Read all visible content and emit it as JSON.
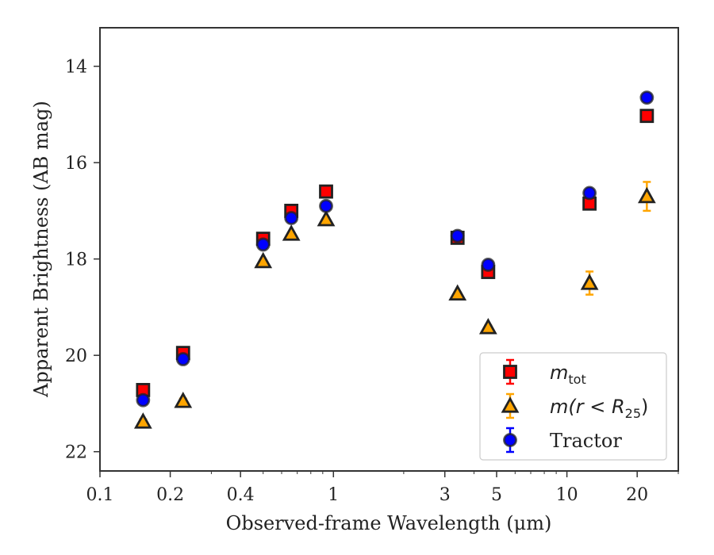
{
  "chart_data": {
    "type": "scatter",
    "xlabel": "Observed-frame Wavelength (μm)",
    "ylabel": "Apparent Brightness (AB mag)",
    "xscale": "log",
    "xlim": [
      0.1,
      30
    ],
    "ylim": [
      22.4,
      13.2
    ],
    "y_inverted": true,
    "xticks": [
      {
        "value": 0.1,
        "label": "0.1"
      },
      {
        "value": 0.2,
        "label": "0.2"
      },
      {
        "value": 0.4,
        "label": "0.4"
      },
      {
        "value": 1,
        "label": "1"
      },
      {
        "value": 3,
        "label": "3"
      },
      {
        "value": 5,
        "label": "5"
      },
      {
        "value": 10,
        "label": "10"
      },
      {
        "value": 20,
        "label": "20"
      }
    ],
    "yticks": [
      {
        "value": 14,
        "label": "14"
      },
      {
        "value": 16,
        "label": "16"
      },
      {
        "value": 18,
        "label": "18"
      },
      {
        "value": 20,
        "label": "20"
      },
      {
        "value": 22,
        "label": "22"
      }
    ],
    "legend_position": "lower-right",
    "series": [
      {
        "name": "m_tot",
        "legend_main": "m",
        "legend_sub": "tot",
        "legend_suffix": "",
        "marker": "square",
        "face": "#ff0000",
        "edge": "#222222",
        "errcolor": "#ff0000",
        "points": [
          {
            "x": 0.153,
            "y": 20.72,
            "err": 0.05
          },
          {
            "x": 0.227,
            "y": 19.95,
            "err": 0.04
          },
          {
            "x": 0.5,
            "y": 17.58,
            "err": 0.03
          },
          {
            "x": 0.66,
            "y": 17.0,
            "err": 0.03
          },
          {
            "x": 0.93,
            "y": 16.6,
            "err": 0.03
          },
          {
            "x": 3.4,
            "y": 17.56,
            "err": 0.03
          },
          {
            "x": 4.6,
            "y": 18.27,
            "err": 0.03
          },
          {
            "x": 12.5,
            "y": 16.85,
            "err": 0.04
          },
          {
            "x": 22.0,
            "y": 15.03,
            "err": 0.05
          }
        ]
      },
      {
        "name": "m(r<R25)",
        "legend_main": "m(r < R",
        "legend_sub": "25",
        "legend_suffix": ")",
        "marker": "triangle",
        "face": "#ffa500",
        "edge": "#222222",
        "errcolor": "#ffa500",
        "points": [
          {
            "x": 0.153,
            "y": 21.38,
            "err": 0.05
          },
          {
            "x": 0.227,
            "y": 20.95,
            "err": 0.05
          },
          {
            "x": 0.5,
            "y": 18.05,
            "err": 0.03
          },
          {
            "x": 0.66,
            "y": 17.48,
            "err": 0.03
          },
          {
            "x": 0.93,
            "y": 17.18,
            "err": 0.03
          },
          {
            "x": 3.4,
            "y": 18.72,
            "err": 0.03
          },
          {
            "x": 4.6,
            "y": 19.42,
            "err": 0.04
          },
          {
            "x": 12.5,
            "y": 18.5,
            "err": 0.24
          },
          {
            "x": 22.0,
            "y": 16.7,
            "err": 0.3
          }
        ]
      },
      {
        "name": "Tractor",
        "legend_main": "Tractor",
        "legend_sub": "",
        "legend_suffix": "",
        "marker": "circle",
        "face": "#0000ff",
        "edge": "#222222",
        "errcolor": "#0000ff",
        "points": [
          {
            "x": 0.153,
            "y": 20.93,
            "err": 0.05
          },
          {
            "x": 0.227,
            "y": 20.08,
            "err": 0.04
          },
          {
            "x": 0.5,
            "y": 17.7,
            "err": 0.03
          },
          {
            "x": 0.66,
            "y": 17.15,
            "err": 0.03
          },
          {
            "x": 0.93,
            "y": 16.9,
            "err": 0.03
          },
          {
            "x": 3.4,
            "y": 17.52,
            "err": 0.03
          },
          {
            "x": 4.6,
            "y": 18.12,
            "err": 0.03
          },
          {
            "x": 12.5,
            "y": 16.63,
            "err": 0.04
          },
          {
            "x": 22.0,
            "y": 14.65,
            "err": 0.04
          }
        ]
      }
    ]
  }
}
